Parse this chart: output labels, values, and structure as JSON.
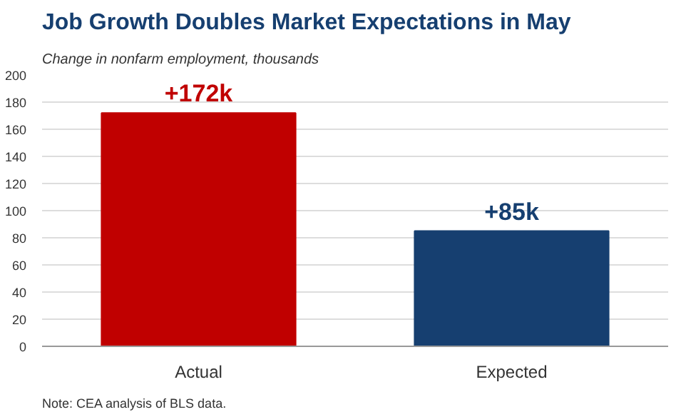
{
  "chart_data": {
    "type": "bar",
    "title": "Job Growth Doubles Market Expectations in May",
    "subtitle": "Change in nonfarm employment, thousands",
    "categories": [
      "Actual",
      "Expected"
    ],
    "values": [
      172,
      85
    ],
    "colors": [
      "#c00000",
      "#163f70"
    ],
    "value_labels": [
      "+172k",
      "+85k"
    ],
    "ylim": [
      0,
      200
    ],
    "yticks": [
      0,
      20,
      40,
      60,
      80,
      100,
      120,
      140,
      160,
      180,
      200
    ],
    "grid": "y",
    "annotations": [
      "Note: CEA analysis of BLS data."
    ]
  }
}
